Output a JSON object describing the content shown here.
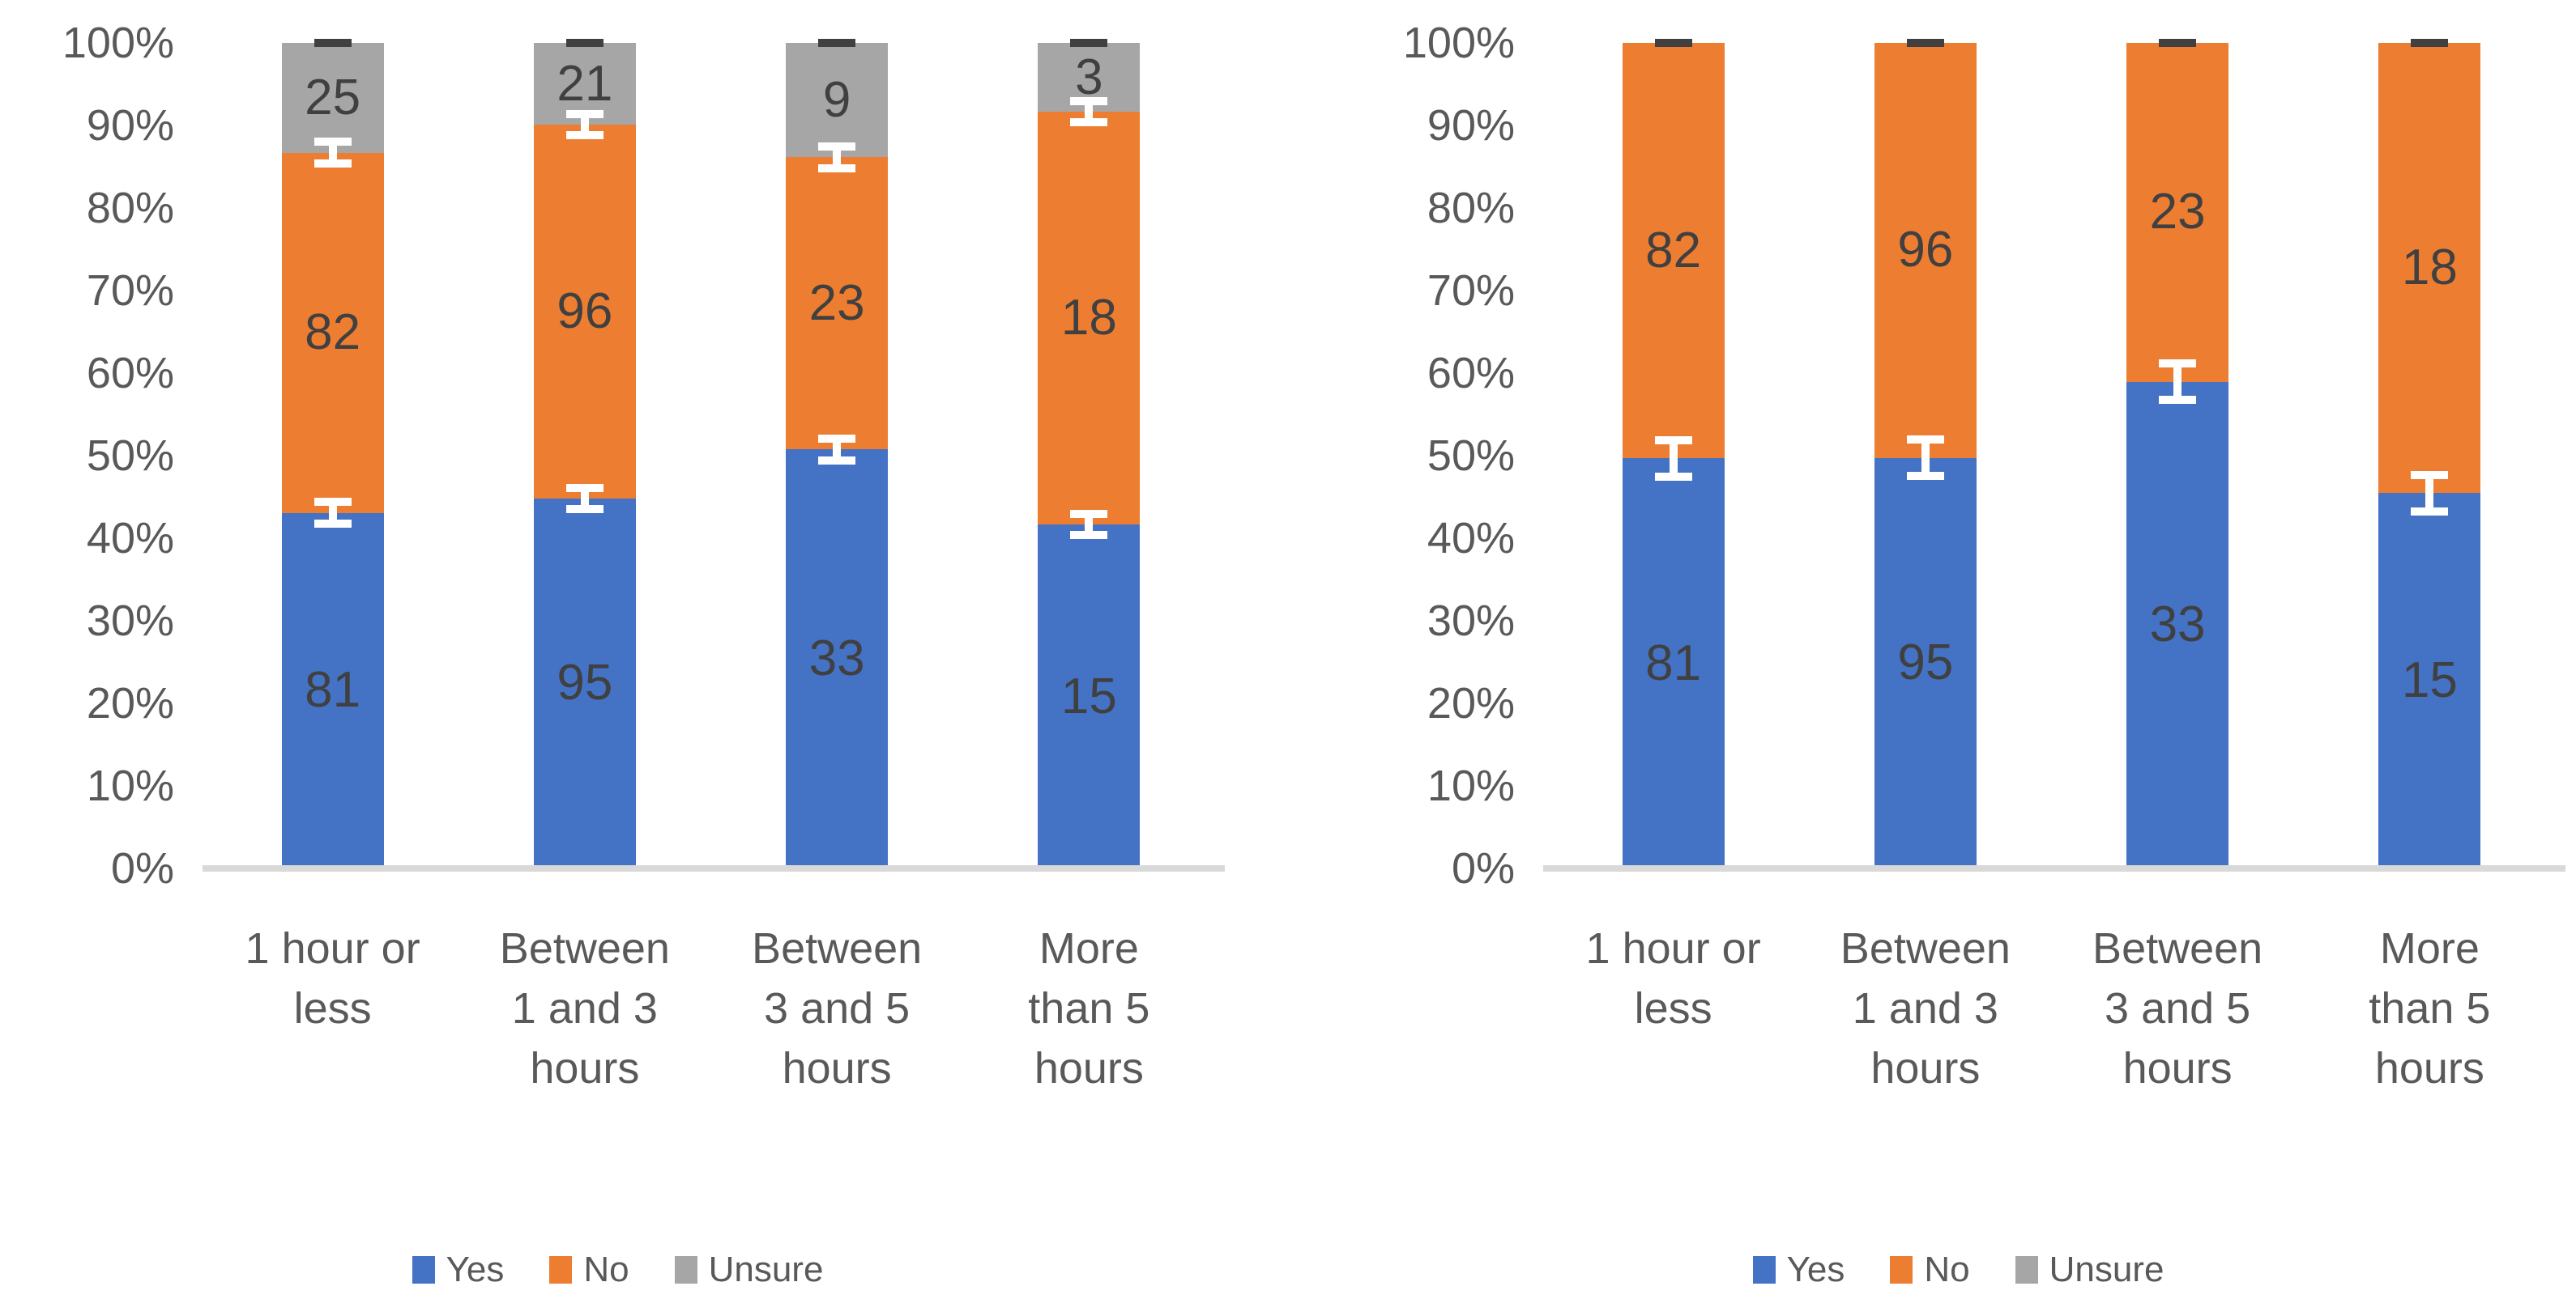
{
  "colors": {
    "yes": "#4472C4",
    "no": "#ED7D31",
    "unsure": "#A6A6A6",
    "segment_label_text": "#404040",
    "axis_text": "#595959",
    "baseline": "#D9D9D9",
    "error_bar_white": "#FFFFFF",
    "error_bar_dark": "#404040",
    "background": "#FFFFFF"
  },
  "chart_data": [
    {
      "type": "bar",
      "subtype": "stacked-100-percent",
      "title": "",
      "categories": [
        "1 hour or\nless",
        "Between\n1 and 3\nhours",
        "Between\n3 and 5\nhours",
        "More\nthan 5\nhours"
      ],
      "series": [
        {
          "name": "Yes",
          "color_key": "yes",
          "values": [
            81,
            95,
            33,
            15
          ]
        },
        {
          "name": "No",
          "color_key": "no",
          "values": [
            82,
            96,
            23,
            18
          ]
        },
        {
          "name": "Unsure",
          "color_key": "unsure",
          "values": [
            25,
            21,
            9,
            3
          ]
        }
      ],
      "y_axis": {
        "ticks": [
          "100%",
          "90%",
          "80%",
          "70%",
          "60%",
          "50%",
          "40%",
          "30%",
          "20%",
          "10%",
          "0%"
        ],
        "min": 0,
        "max": 100,
        "grid": false
      },
      "data_labels": true,
      "error_bars": {
        "boundaries_after_series": [
          0,
          1
        ],
        "half_pct": 1.8,
        "top_dash": true
      },
      "legend": {
        "position": "bottom",
        "entries": [
          "Yes",
          "No",
          "Unsure"
        ]
      }
    },
    {
      "type": "bar",
      "subtype": "stacked-100-percent",
      "title": "",
      "categories": [
        "1 hour or\nless",
        "Between\n1 and 3\nhours",
        "Between\n3 and 5\nhours",
        "More\nthan 5\nhours"
      ],
      "series": [
        {
          "name": "Yes",
          "color_key": "yes",
          "values": [
            81,
            95,
            33,
            15
          ]
        },
        {
          "name": "No",
          "color_key": "no",
          "values": [
            82,
            96,
            23,
            18
          ]
        },
        {
          "name": "Unsure",
          "color_key": "unsure",
          "values": [
            0,
            0,
            0,
            0
          ]
        }
      ],
      "y_axis": {
        "ticks": [
          "100%",
          "90%",
          "80%",
          "70%",
          "60%",
          "50%",
          "40%",
          "30%",
          "20%",
          "10%",
          "0%"
        ],
        "min": 0,
        "max": 100,
        "grid": false
      },
      "data_labels": true,
      "error_bars": {
        "boundaries_after_series": [
          0
        ],
        "half_pct": 2.7,
        "top_dash": true
      },
      "legend": {
        "position": "bottom",
        "entries": [
          "Yes",
          "No",
          "Unsure"
        ]
      }
    }
  ]
}
